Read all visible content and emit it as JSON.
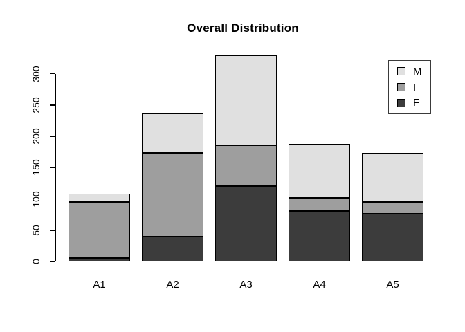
{
  "chart_data": {
    "type": "bar",
    "stacked": true,
    "title": "Overall Distribution",
    "categories": [
      "A1",
      "A2",
      "A3",
      "A4",
      "A5"
    ],
    "series": [
      {
        "name": "F",
        "color": "#3C3C3C",
        "values": [
          5,
          40,
          120,
          81,
          76
        ]
      },
      {
        "name": "I",
        "color": "#9E9E9E",
        "values": [
          90,
          133,
          66,
          21,
          19
        ]
      },
      {
        "name": "M",
        "color": "#E0E0E0",
        "values": [
          13,
          63,
          143,
          86,
          79
        ]
      }
    ],
    "stack_totals": [
      108,
      236,
      329,
      188,
      174
    ],
    "xlabel": "",
    "ylabel": "",
    "y_ticks": [
      0,
      50,
      100,
      150,
      200,
      250,
      300
    ],
    "ylim": [
      0,
      335
    ],
    "grid": false,
    "legend": {
      "position": "top-right",
      "order": [
        "M",
        "I",
        "F"
      ]
    },
    "bar_border_color": "#000000",
    "axis_color": "#000000",
    "background": "#FFFFFF"
  }
}
